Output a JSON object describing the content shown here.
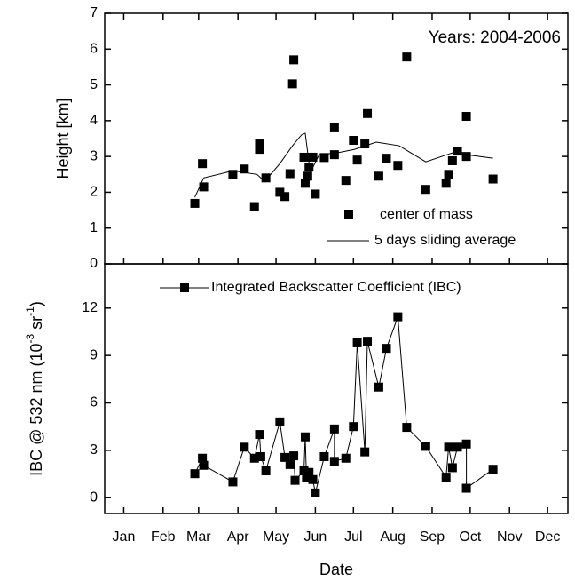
{
  "chart_data": [
    {
      "type": "scatter",
      "ylabel": "Height [km]",
      "annotation": "Years: 2004-2006",
      "xlim": [
        0,
        365
      ],
      "ylim": [
        0,
        7
      ],
      "yticks": [
        0,
        1,
        2,
        3,
        4,
        5,
        6,
        7
      ],
      "series": [
        {
          "name": "center of mass",
          "color": "#000000",
          "x": [
            71,
            77,
            78,
            101,
            110,
            118,
            122,
            122,
            127,
            138,
            142,
            146,
            149,
            148,
            157,
            158,
            160,
            161,
            164,
            166,
            173,
            181,
            181,
            190,
            196,
            199,
            205,
            207,
            216,
            222,
            231,
            238,
            253,
            269,
            271,
            274,
            278,
            285,
            285,
            306
          ],
          "values": [
            1.69,
            2.8,
            2.15,
            2.5,
            2.65,
            1.6,
            3.35,
            3.2,
            2.4,
            2.0,
            1.88,
            2.52,
            5.7,
            5.03,
            2.98,
            2.25,
            2.45,
            2.7,
            2.98,
            1.95,
            2.97,
            3.8,
            3.05,
            2.33,
            3.45,
            2.9,
            3.35,
            4.2,
            2.45,
            2.95,
            2.75,
            5.78,
            2.08,
            2.25,
            2.5,
            2.88,
            3.15,
            3.0,
            4.12,
            2.37
          ]
        },
        {
          "name": "5 days sliding average",
          "color": "#000000",
          "x": [
            71,
            78,
            101,
            120,
            126,
            138,
            148,
            155,
            158,
            162,
            169,
            183,
            197,
            214,
            232,
            253,
            274,
            306
          ],
          "values": [
            1.86,
            2.4,
            2.6,
            2.5,
            2.3,
            2.8,
            3.3,
            3.6,
            3.65,
            2.55,
            3.05,
            3.1,
            3.2,
            3.4,
            3.3,
            2.85,
            3.1,
            2.95
          ]
        }
      ]
    },
    {
      "type": "line",
      "xlabel": "Date",
      "ylabel": [
        "IBC @ 532 nm (10",
        "-3",
        " sr",
        "-1",
        ")"
      ],
      "xlim": [
        0,
        365
      ],
      "xticks": [
        {
          "value": 15,
          "label": "Jan"
        },
        {
          "value": 46,
          "label": "Feb"
        },
        {
          "value": 74,
          "label": "Mar"
        },
        {
          "value": 105,
          "label": "Apr"
        },
        {
          "value": 135,
          "label": "May"
        },
        {
          "value": 166,
          "label": "Jun"
        },
        {
          "value": 196,
          "label": "Jul"
        },
        {
          "value": 227,
          "label": "Aug"
        },
        {
          "value": 258,
          "label": "Sep"
        },
        {
          "value": 288,
          "label": "Oct"
        },
        {
          "value": 319,
          "label": "Nov"
        },
        {
          "value": 349,
          "label": "Dec"
        }
      ],
      "ylim": [
        -1,
        14.8
      ],
      "yticks": [
        0,
        3,
        6,
        9,
        12
      ],
      "series": [
        {
          "name": "Integrated Backscatter Coefficient (IBC)",
          "color": "#000000",
          "x": [
            71,
            77,
            78,
            101,
            110,
            118,
            122,
            123,
            127,
            138,
            142,
            146,
            149,
            150,
            157,
            158,
            159,
            161,
            164,
            166,
            173,
            181,
            181,
            190,
            196,
            199,
            205,
            207,
            216,
            222,
            231,
            238,
            253,
            269,
            271,
            274,
            278,
            285,
            285,
            306
          ],
          "values": [
            1.52,
            2.5,
            2.05,
            1.0,
            3.2,
            2.5,
            4.0,
            2.6,
            1.7,
            4.8,
            2.55,
            2.1,
            2.65,
            1.1,
            1.7,
            3.85,
            1.3,
            1.6,
            1.15,
            0.3,
            2.6,
            4.35,
            2.3,
            2.5,
            4.5,
            9.8,
            2.9,
            9.9,
            7.0,
            9.45,
            11.45,
            4.45,
            3.25,
            1.3,
            3.2,
            1.9,
            3.2,
            3.4,
            0.6,
            1.8
          ]
        }
      ]
    }
  ]
}
